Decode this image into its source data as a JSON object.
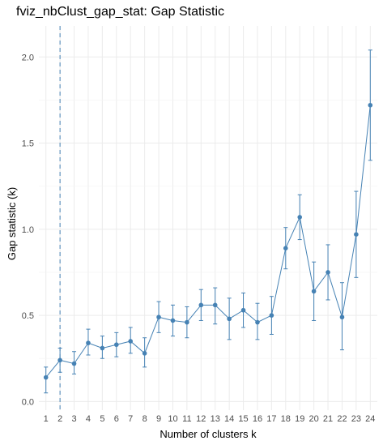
{
  "chart_data": {
    "type": "line",
    "title": "fviz_nbClust_gap_stat: Gap Statistic",
    "xlabel": "Number of clusters k",
    "ylabel": "Gap statistic (k)",
    "categories": [
      "1",
      "2",
      "3",
      "4",
      "5",
      "6",
      "7",
      "8",
      "9",
      "10",
      "11",
      "12",
      "13",
      "14",
      "15",
      "16",
      "17",
      "18",
      "19",
      "20",
      "21",
      "22",
      "23",
      "24"
    ],
    "series": [
      {
        "values": [
          0.14,
          0.24,
          0.22,
          0.34,
          0.31,
          0.33,
          0.35,
          0.28,
          0.49,
          0.47,
          0.46,
          0.56,
          0.56,
          0.48,
          0.53,
          0.46,
          0.5,
          0.89,
          1.07,
          0.64,
          0.75,
          0.49,
          0.97,
          1.72
        ],
        "err_low": [
          0.05,
          0.17,
          0.16,
          0.27,
          0.25,
          0.26,
          0.28,
          0.2,
          0.4,
          0.38,
          0.37,
          0.47,
          0.45,
          0.36,
          0.43,
          0.36,
          0.39,
          0.77,
          0.94,
          0.47,
          0.59,
          0.3,
          0.72,
          1.4
        ],
        "err_high": [
          0.2,
          0.31,
          0.29,
          0.42,
          0.38,
          0.4,
          0.43,
          0.37,
          0.58,
          0.56,
          0.55,
          0.65,
          0.66,
          0.6,
          0.63,
          0.57,
          0.61,
          1.01,
          1.2,
          0.81,
          0.91,
          0.69,
          1.22,
          2.04
        ],
        "color": "#4682B4"
      }
    ],
    "optimal_k": 2,
    "yticks": [
      0.0,
      0.5,
      1.0,
      1.5,
      2.0
    ],
    "ytick_labels": [
      "0.0",
      "0.5",
      "1.0",
      "1.5",
      "2.0"
    ],
    "ylim": [
      -0.05,
      2.18
    ],
    "grid": true,
    "grid_color": "#ebebeb",
    "background": "#ffffff",
    "tick_color": "#4d4d4d"
  }
}
